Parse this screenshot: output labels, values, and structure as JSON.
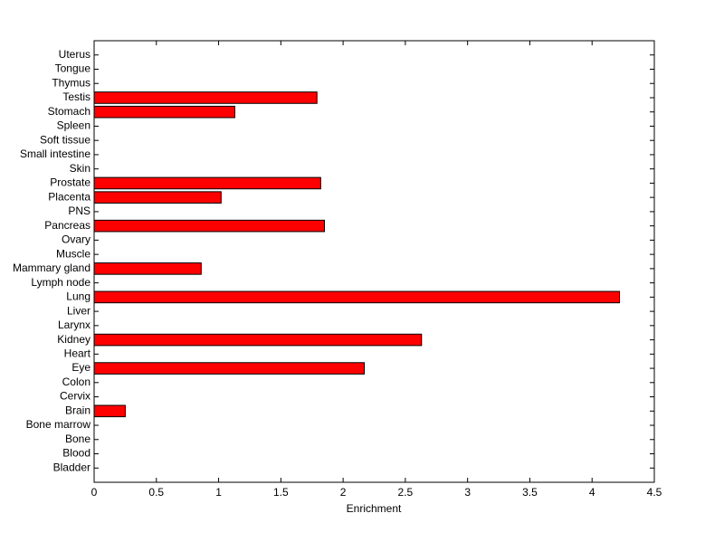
{
  "chart_data": {
    "type": "bar",
    "orientation": "horizontal",
    "x_label": "Enrichment",
    "categories": [
      "Bladder",
      "Blood",
      "Bone",
      "Bone marrow",
      "Brain",
      "Cervix",
      "Colon",
      "Eye",
      "Heart",
      "Kidney",
      "Larynx",
      "Liver",
      "Lung",
      "Lymph node",
      "Mammary gland",
      "Muscle",
      "Ovary",
      "Pancreas",
      "PNS",
      "Placenta",
      "Prostate",
      "Skin",
      "Small intestine",
      "Soft tissue",
      "Spleen",
      "Stomach",
      "Testis",
      "Thymus",
      "Tongue",
      "Uterus"
    ],
    "values": [
      0,
      0,
      0,
      0,
      0.25,
      0,
      0,
      2.17,
      0,
      2.63,
      0,
      0,
      4.22,
      0,
      0.86,
      0,
      0,
      1.85,
      0,
      1.02,
      1.82,
      0,
      0,
      0,
      0,
      1.13,
      1.79,
      0,
      0,
      0
    ],
    "color": "#ff0000",
    "xlim": [
      0,
      4.5
    ],
    "xticks": [
      0,
      0.5,
      1,
      1.5,
      2,
      2.5,
      3,
      3.5,
      4,
      4.5
    ],
    "grid": false
  }
}
